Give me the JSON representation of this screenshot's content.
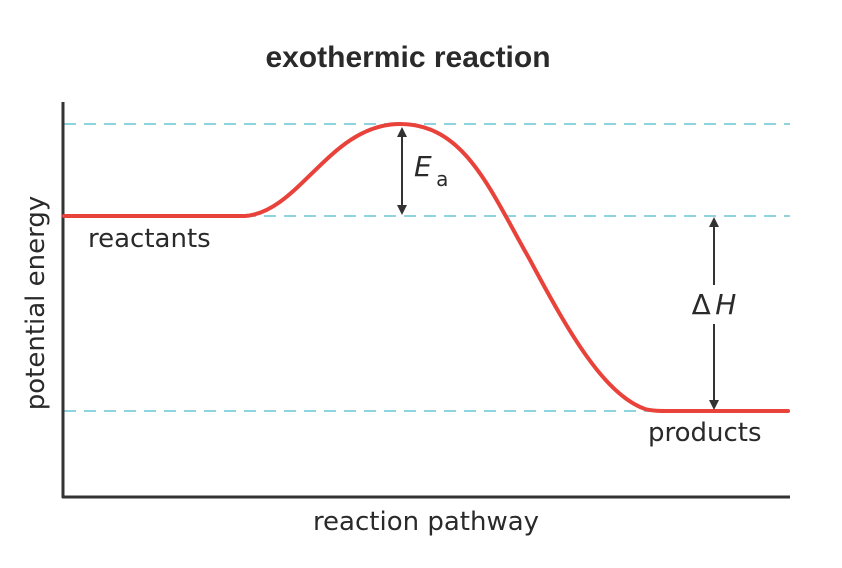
{
  "title": "exothermic reaction",
  "axes": {
    "y_label": "potential energy",
    "x_label": "reaction pathway"
  },
  "labels": {
    "reactants": "reactants",
    "products": "products",
    "activation_energy_symbol": "E",
    "activation_energy_subscript": "a",
    "enthalpy_delta": "Δ",
    "enthalpy_symbol": "H"
  },
  "colors": {
    "curve": "#e8423a",
    "guide": "#8fd3de",
    "axis": "#333333",
    "arrow": "#333333"
  }
}
